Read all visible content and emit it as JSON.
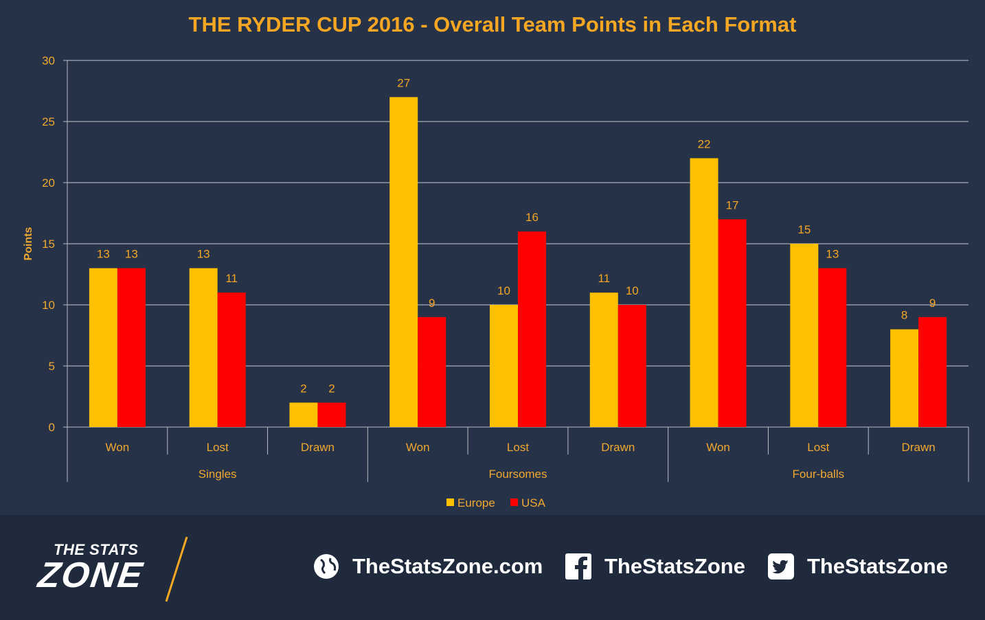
{
  "title": "THE RYDER CUP 2016 - Overall Team Points in Each Format",
  "colors": {
    "europe": "#ffc000",
    "usa": "#ff0000",
    "label": "#f5a623",
    "axis_text": "#f0a830",
    "grid": "#c8ccd4"
  },
  "chart_data": {
    "type": "bar",
    "title": "THE RYDER CUP 2016 - Overall Team Points in Each Format",
    "ylabel": "Points",
    "xlabel": "",
    "ylim": [
      0,
      30
    ],
    "yticks": [
      0,
      5,
      10,
      15,
      20,
      25,
      30
    ],
    "grid": true,
    "legend_position": "bottom",
    "groups": [
      "Singles",
      "Foursomes",
      "Four-balls"
    ],
    "categories": [
      "Won",
      "Lost",
      "Drawn",
      "Won",
      "Lost",
      "Drawn",
      "Won",
      "Lost",
      "Drawn"
    ],
    "series": [
      {
        "name": "Europe",
        "color": "#ffc000",
        "values": [
          13,
          13,
          2,
          27,
          10,
          11,
          22,
          15,
          8
        ]
      },
      {
        "name": "USA",
        "color": "#ff0000",
        "values": [
          13,
          11,
          2,
          9,
          16,
          10,
          17,
          13,
          9
        ]
      }
    ]
  },
  "footer": {
    "logo_top": "THE STATS",
    "logo_main": "ZONE",
    "website": "TheStatsZone.com",
    "facebook": "TheStatsZone",
    "twitter": "TheStatsZone"
  }
}
